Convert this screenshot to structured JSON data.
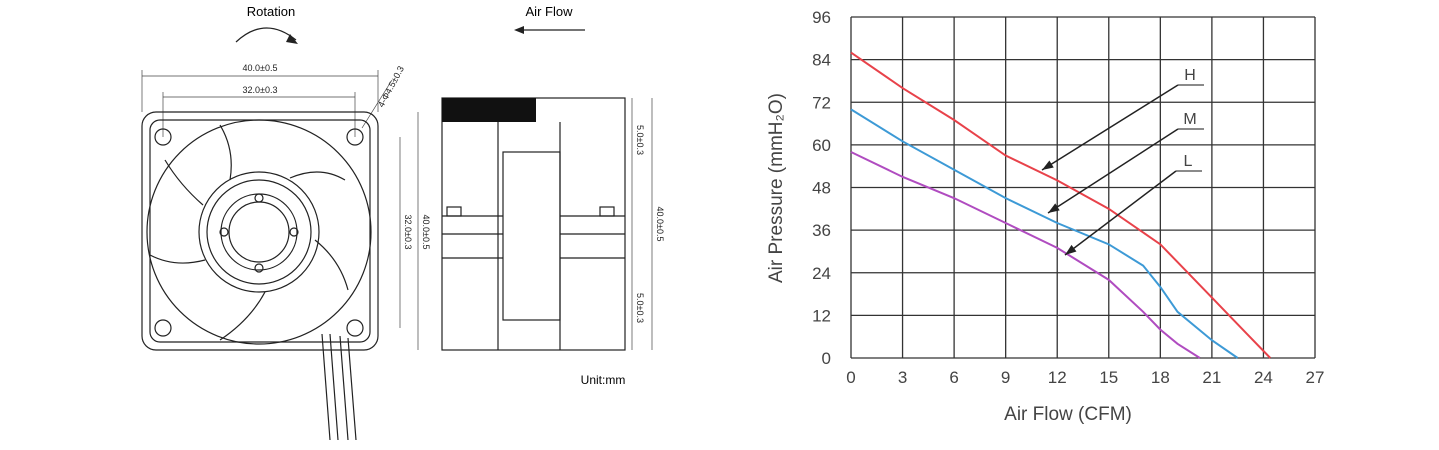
{
  "drawing": {
    "rotation": "Rotation",
    "air_flow": "Air Flow",
    "width_outer": "40.0±0.5",
    "width_inner": "32.0±0.3",
    "holes": "4-Φ4.5±0.3",
    "height_inner": "32.0±0.3",
    "height_outer": "40.0±0.5",
    "side_top": "5.0±0.3",
    "side_height": "40.0±0.5",
    "side_bottom": "5.0±0.3",
    "unit": "Unit:mm"
  },
  "chart_data": {
    "type": "line",
    "xlabel": "Air Flow (CFM)",
    "ylabel": "Air Pressure (mmH₂O)",
    "xlim": [
      0,
      27
    ],
    "xticks": [
      0,
      3,
      6,
      9,
      12,
      15,
      18,
      21,
      24,
      27
    ],
    "ylim": [
      0,
      96
    ],
    "yticks": [
      0,
      12,
      24,
      36,
      48,
      60,
      72,
      84,
      96
    ],
    "grid": true,
    "series": [
      {
        "name": "H",
        "color": "#e8424a",
        "x": [
          0,
          3,
          6,
          9,
          12,
          15,
          18,
          19,
          21,
          23,
          24.4
        ],
        "values": [
          86,
          76,
          67,
          57,
          50,
          42,
          32,
          27,
          17,
          7,
          0
        ]
      },
      {
        "name": "M",
        "color": "#3d9ad6",
        "x": [
          0,
          3,
          6,
          9,
          12,
          15,
          17,
          18,
          19,
          21,
          22.5
        ],
        "values": [
          70,
          61,
          53,
          45,
          38,
          32,
          26,
          20,
          13,
          5,
          0
        ]
      },
      {
        "name": "L",
        "color": "#b04cc0",
        "x": [
          0,
          3,
          6,
          9,
          12,
          15,
          17,
          18,
          19,
          20.3
        ],
        "values": [
          58,
          51,
          45,
          38,
          31,
          22,
          13,
          8,
          4,
          0
        ]
      }
    ],
    "annotations": [
      {
        "text": "H"
      },
      {
        "text": "M"
      },
      {
        "text": "L"
      }
    ]
  }
}
